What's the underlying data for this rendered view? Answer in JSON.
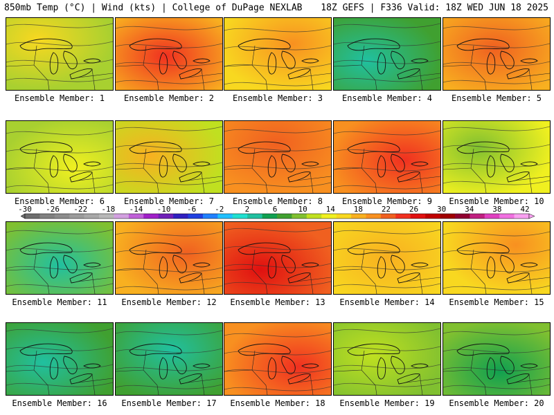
{
  "header": {
    "left": "850mb Temp (°C) | Wind (kts) | College of DuPage NEXLAB",
    "right": "18Z GEFS | F336 Valid: 18Z WED JUN 18 2025"
  },
  "colorbar": {
    "labels": [
      "-30",
      "-26",
      "-22",
      "-18",
      "-14",
      "-10",
      "-6",
      "-2",
      "2",
      "6",
      "10",
      "14",
      "18",
      "22",
      "26",
      "30",
      "34",
      "38",
      "42"
    ],
    "colors": [
      "#6d6d6d",
      "#808080",
      "#8c8c8c",
      "#9b9b9b",
      "#a8a8a8",
      "#b8b8b8",
      "#d2a0e0",
      "#c060d8",
      "#a020c8",
      "#7020b8",
      "#3020c0",
      "#2040e0",
      "#2080ff",
      "#20c0ff",
      "#20e0d0",
      "#20c0a0",
      "#10a050",
      "#40a030",
      "#80c030",
      "#c0e020",
      "#f0f020",
      "#f8d820",
      "#f8b020",
      "#f89020",
      "#f06020",
      "#f03020",
      "#e01010",
      "#c00000",
      "#a00000",
      "#900030",
      "#c02080",
      "#e040c0",
      "#f070e0",
      "#f8a0f0"
    ]
  },
  "members": [
    {
      "label": "Ensemble Member: 1",
      "base": "#a8d030",
      "warm": "#f8d820"
    },
    {
      "label": "Ensemble Member: 2",
      "base": "#f8b020",
      "warm": "#f03020"
    },
    {
      "label": "Ensemble Member: 3",
      "base": "#f8d820",
      "warm": "#f89020"
    },
    {
      "label": "Ensemble Member: 4",
      "base": "#40a030",
      "warm": "#20c0a0"
    },
    {
      "label": "Ensemble Member: 5",
      "base": "#f8b020",
      "warm": "#f06020"
    },
    {
      "label": "Ensemble Member: 6",
      "base": "#a8d030",
      "warm": "#f0f020"
    },
    {
      "label": "Ensemble Member: 7",
      "base": "#c0e020",
      "warm": "#f8b020"
    },
    {
      "label": "Ensemble Member: 8",
      "base": "#f89020",
      "warm": "#f06020"
    },
    {
      "label": "Ensemble Member: 9",
      "base": "#f89020",
      "warm": "#f03020"
    },
    {
      "label": "Ensemble Member: 10",
      "base": "#f0f020",
      "warm": "#80c030"
    },
    {
      "label": "Ensemble Member: 11",
      "base": "#80c030",
      "warm": "#20c0a0"
    },
    {
      "label": "Ensemble Member: 12",
      "base": "#f8b020",
      "warm": "#f06020"
    },
    {
      "label": "Ensemble Member: 13",
      "base": "#f06020",
      "warm": "#e01010"
    },
    {
      "label": "Ensemble Member: 14",
      "base": "#f8d820",
      "warm": "#f8b020"
    },
    {
      "label": "Ensemble Member: 15",
      "base": "#f8d820",
      "warm": "#f89020"
    },
    {
      "label": "Ensemble Member: 16",
      "base": "#40a030",
      "warm": "#20c0a0"
    },
    {
      "label": "Ensemble Member: 17",
      "base": "#40a030",
      "warm": "#20c0a0"
    },
    {
      "label": "Ensemble Member: 18",
      "base": "#f89020",
      "warm": "#f03020"
    },
    {
      "label": "Ensemble Member: 19",
      "base": "#80c030",
      "warm": "#c0e020"
    },
    {
      "label": "Ensemble Member: 20",
      "base": "#80c030",
      "warm": "#10a050"
    }
  ]
}
